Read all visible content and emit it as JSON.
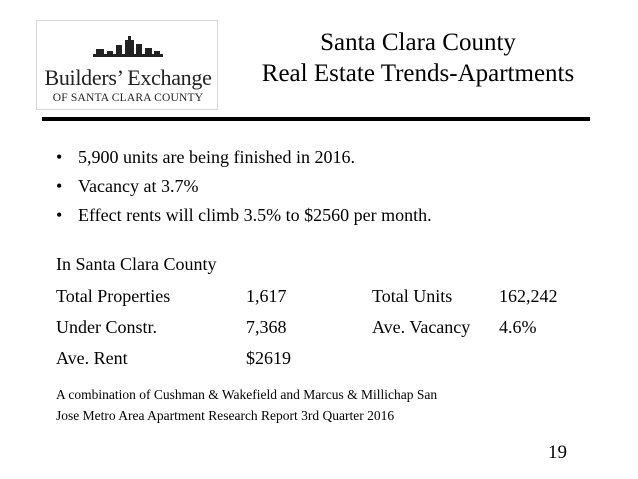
{
  "logo": {
    "name": "Builders’ Exchange",
    "subtitle": "OF SANTA CLARA COUNTY"
  },
  "title": {
    "line1": "Santa Clara County",
    "line2": "Real Estate Trends-Apartments"
  },
  "bullets": [
    "5,900 units are being finished in 2016.",
    "Vacancy at 3.7%",
    "Effect rents will climb 3.5% to $2560 per month."
  ],
  "bullet_char": "•",
  "section_title": "In Santa Clara County",
  "stats": [
    {
      "label": "Total Properties",
      "value": "1,617",
      "label2": "Total Units",
      "value2": "162,242"
    },
    {
      "label": "Under Constr.",
      "value": "7,368",
      "label2": "Ave. Vacancy",
      "value2": "4.6%"
    },
    {
      "label": "Ave. Rent",
      "value": "$2619",
      "label2": "",
      "value2": ""
    }
  ],
  "source": {
    "line1": "A combination of Cushman & Wakefield  and Marcus & Millichap San",
    "line2": "Jose Metro Area Apartment Research Report 3rd Quarter 2016"
  },
  "page_number": "19"
}
